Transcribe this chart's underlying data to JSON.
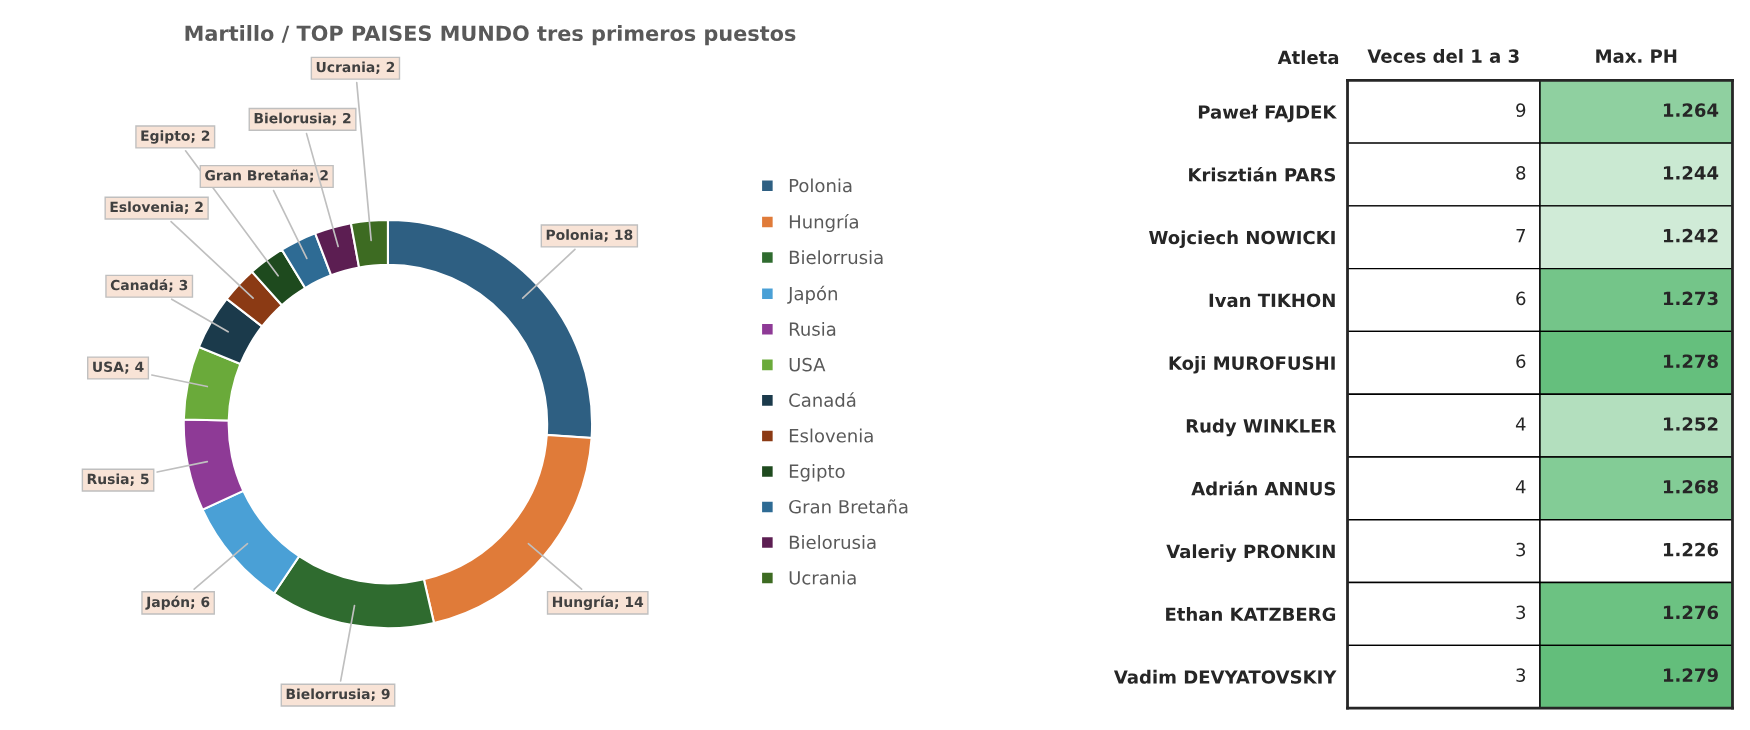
{
  "chart_data": [
    {
      "type": "donut",
      "title": "Martillo / TOP PAISES MUNDO tres primeros puestos",
      "categories": [
        "Polonia",
        "Hungría",
        "Bielorrusia",
        "Japón",
        "Rusia",
        "USA",
        "Canadá",
        "Eslovenia",
        "Egipto",
        "Gran Bretaña",
        "Bielorusia",
        "Ucrania"
      ],
      "values": [
        18,
        14,
        9,
        6,
        5,
        4,
        3,
        2,
        2,
        2,
        2,
        2
      ],
      "colors": [
        "#2e5f82",
        "#e07b39",
        "#2f6b2f",
        "#4aa0d6",
        "#8e3a96",
        "#6aaa3a",
        "#1b3a4b",
        "#8b3a14",
        "#1e4a1e",
        "#2e6b94",
        "#5c1e52",
        "#3d6b22"
      ],
      "value_labels": [
        "Polonia; 18",
        "Hungría; 14",
        "Bielorrusia; 9",
        "Japón; 6",
        "Rusia; 5",
        "USA; 4",
        "Canadá; 3",
        "Eslovenia; 2",
        "Egipto; 2",
        "Gran Bretaña; 2",
        "Bielorusia; 2",
        "Ucrania; 2"
      ],
      "legend": "right"
    },
    {
      "type": "heatmap",
      "ylabel": "Atleta",
      "categories": [
        "Veces del 1 a 3",
        "Max. PH"
      ],
      "y_categories": [
        "Paweł FAJDEK",
        "Krisztián PARS",
        "Wojciech NOWICKI",
        "Ivan TIKHON",
        "Koji MUROFUSHI",
        "Rudy WINKLER",
        "Adrián ANNUS",
        "Valeriy PRONKIN",
        "Ethan KATZBERG",
        "Vadim DEVYATOVSKIY"
      ],
      "cells": [
        [
          9,
          1.264
        ],
        [
          8,
          1.244
        ],
        [
          7,
          1.242
        ],
        [
          6,
          1.273
        ],
        [
          6,
          1.278
        ],
        [
          4,
          1.252
        ],
        [
          4,
          1.268
        ],
        [
          3,
          1.226
        ],
        [
          3,
          1.276
        ],
        [
          3,
          1.279
        ]
      ],
      "colors": [
        "#ffffff",
        "#63be7b"
      ],
      "data_labels": true
    }
  ]
}
